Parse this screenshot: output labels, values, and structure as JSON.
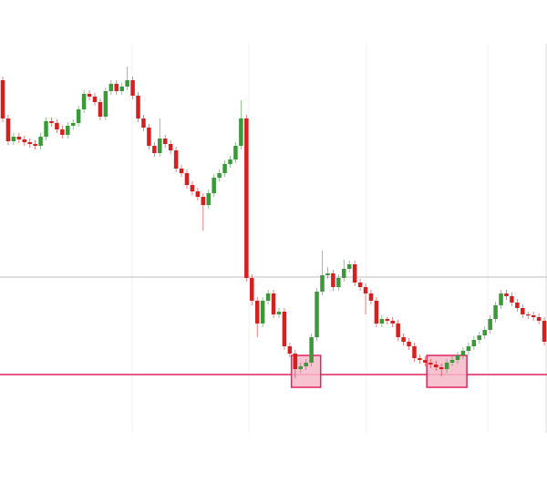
{
  "chart_data": {
    "type": "candlestick",
    "up_color": "#3a9a3a",
    "down_color": "#d62020",
    "ylim": [
      0,
      427
    ],
    "open": [
      387,
      345,
      320,
      325,
      322,
      319,
      317,
      315,
      325,
      342,
      340,
      333,
      327,
      337,
      340,
      355,
      372,
      369,
      363,
      347,
      375,
      383,
      375,
      380,
      387,
      370,
      345,
      335,
      315,
      307,
      323,
      317,
      310,
      290,
      285,
      272,
      265,
      259,
      250,
      263,
      280,
      285,
      295,
      300,
      315,
      345,
      170,
      145,
      120,
      145,
      153,
      130,
      133,
      95,
      87,
      70,
      73,
      77,
      105,
      155,
      173,
      175,
      160,
      170,
      180,
      185,
      165,
      160,
      153,
      145,
      120,
      125,
      123,
      120,
      105,
      100,
      95,
      82,
      80,
      77,
      75,
      72,
      70,
      77,
      80,
      85,
      90,
      95,
      102,
      107,
      113,
      125,
      140,
      153,
      150,
      143,
      137,
      130,
      129,
      127,
      123
    ],
    "close": [
      345,
      320,
      325,
      322,
      319,
      317,
      315,
      325,
      342,
      340,
      333,
      327,
      337,
      340,
      355,
      372,
      369,
      363,
      347,
      375,
      383,
      375,
      380,
      387,
      370,
      345,
      335,
      315,
      307,
      323,
      317,
      310,
      290,
      285,
      272,
      265,
      259,
      250,
      263,
      280,
      285,
      295,
      300,
      315,
      345,
      170,
      145,
      120,
      145,
      153,
      130,
      133,
      95,
      87,
      70,
      73,
      77,
      105,
      155,
      173,
      175,
      160,
      170,
      180,
      185,
      165,
      160,
      153,
      145,
      120,
      125,
      123,
      120,
      105,
      100,
      95,
      82,
      80,
      77,
      75,
      72,
      70,
      77,
      80,
      85,
      90,
      95,
      102,
      107,
      113,
      125,
      140,
      153,
      150,
      143,
      137,
      130,
      129,
      127,
      123,
      100
    ],
    "high": [
      391,
      349,
      329,
      329,
      326,
      323,
      321,
      329,
      346,
      346,
      344,
      337,
      341,
      344,
      359,
      376,
      376,
      373,
      367,
      379,
      387,
      387,
      384,
      402,
      391,
      374,
      349,
      339,
      319,
      345,
      327,
      321,
      314,
      294,
      289,
      276,
      269,
      263,
      267,
      284,
      289,
      299,
      304,
      319,
      365,
      349,
      174,
      149,
      149,
      157,
      157,
      137,
      137,
      99,
      91,
      77,
      81,
      109,
      159,
      200,
      182,
      179,
      174,
      190,
      189,
      189,
      169,
      164,
      157,
      149,
      129,
      127,
      127,
      124,
      109,
      104,
      99,
      86,
      84,
      81,
      79,
      76,
      81,
      84,
      89,
      94,
      99,
      106,
      111,
      117,
      129,
      144,
      157,
      157,
      154,
      147,
      141,
      133,
      133,
      131,
      127
    ],
    "low": [
      341,
      316,
      316,
      318,
      315,
      313,
      311,
      311,
      321,
      336,
      329,
      323,
      323,
      333,
      336,
      351,
      365,
      359,
      343,
      343,
      371,
      371,
      371,
      376,
      366,
      341,
      331,
      311,
      303,
      303,
      313,
      306,
      286,
      281,
      268,
      261,
      255,
      222,
      246,
      259,
      276,
      281,
      291,
      296,
      311,
      166,
      140,
      105,
      116,
      141,
      126,
      126,
      91,
      83,
      60,
      66,
      69,
      73,
      101,
      151,
      169,
      156,
      156,
      166,
      176,
      161,
      156,
      130,
      141,
      116,
      116,
      119,
      116,
      101,
      96,
      91,
      78,
      76,
      73,
      71,
      68,
      62,
      66,
      73,
      76,
      81,
      86,
      91,
      98,
      103,
      109,
      121,
      136,
      146,
      139,
      133,
      126,
      125,
      123,
      119,
      96
    ],
    "hlines": [
      {
        "value": 171,
        "color": "#bdbdbd"
      },
      {
        "value": 64,
        "color": "#e0245e"
      }
    ],
    "highlights": [
      {
        "from": 54,
        "to": 58,
        "low": 50,
        "high": 85,
        "color": "#f7b9c9",
        "border": "#e0245e"
      },
      {
        "from": 79,
        "to": 85,
        "low": 50,
        "high": 85,
        "color": "#f7b9c9",
        "border": "#e0245e"
      }
    ]
  }
}
